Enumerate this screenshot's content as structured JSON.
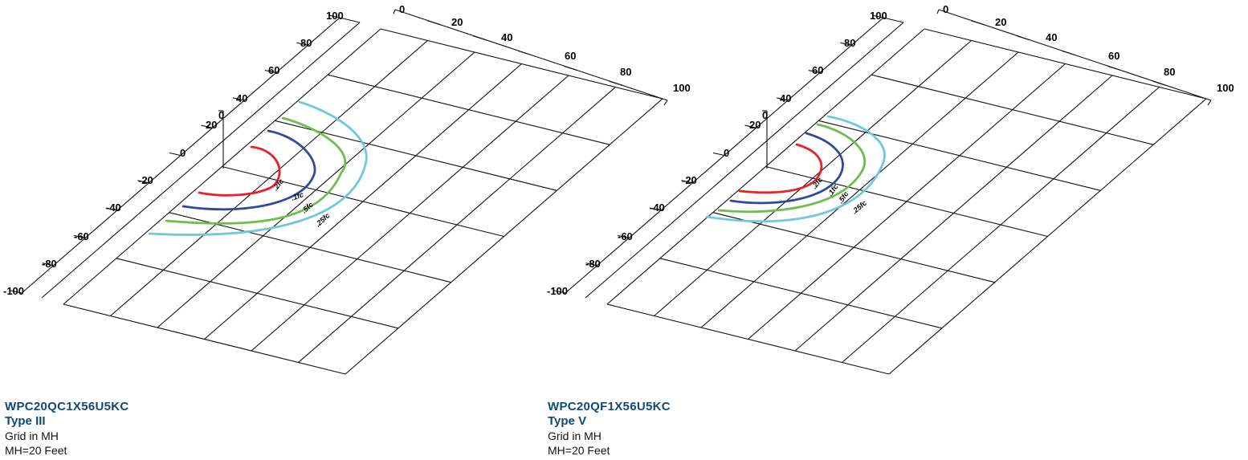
{
  "diagrams": [
    {
      "model": "WPC20QC1X56U5KC",
      "type": "Type III",
      "grid_note": "Grid in MH",
      "mounting_height": "MH=20 Feet",
      "x_axis_labels": [
        "0",
        "20",
        "40",
        "60",
        "80",
        "100"
      ],
      "y_axis_labels": [
        "100",
        "80",
        "60",
        "40",
        "20",
        "0",
        "-20",
        "-40",
        "-60",
        "-80",
        "-100"
      ],
      "vertical_axis_label": "0",
      "isofootcandle_labels": [
        ".2fc",
        ".1fc",
        ".5fc",
        ".25fc"
      ],
      "contour_colors": [
        "#e8202a",
        "#2e4a9e",
        "#6cbf4a",
        "#6ec9dc"
      ]
    },
    {
      "model": "WPC20QF1X56U5KC",
      "type": "Type V",
      "grid_note": "Grid in MH",
      "mounting_height": "MH=20 Feet",
      "x_axis_labels": [
        "0",
        "20",
        "40",
        "60",
        "80",
        "100"
      ],
      "y_axis_labels": [
        "100",
        "80",
        "60",
        "40",
        "20",
        "0",
        "-20",
        "-40",
        "-60",
        "-80",
        "-100"
      ],
      "vertical_axis_label": "0",
      "isofootcandle_labels": [
        ".2fc",
        ".1fc",
        ".5fc",
        ".25fc"
      ],
      "contour_colors": [
        "#e8202a",
        "#2e4a9e",
        "#6cbf4a",
        "#6ec9dc"
      ]
    }
  ]
}
